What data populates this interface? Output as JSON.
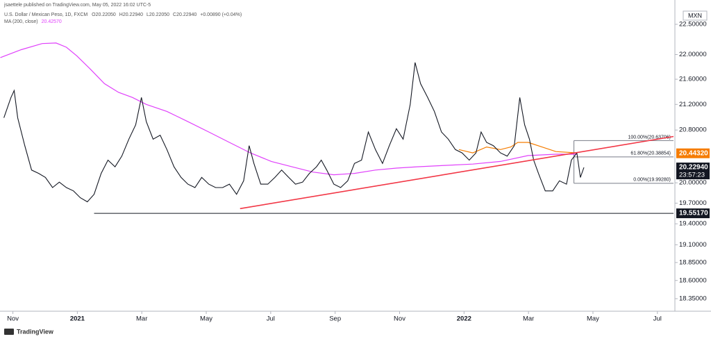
{
  "header": {
    "publisher": "jsaettele published on TradingView.com, May 05, 2022 16:02 UTC-5",
    "symbol": "U.S. Dollar / Mexican Peso, 1D, FXCM",
    "open": {
      "value": 20.2205,
      "label": "O20.22050"
    },
    "high": {
      "value": 20.2294,
      "label": "H20.22940"
    },
    "low": {
      "value": 20.2205,
      "label": "L20.22050"
    },
    "close": {
      "value": 20.2294,
      "label": "C20.22940"
    },
    "change": {
      "value": 0.0089,
      "label": "+0.00890 (+0.04%)"
    },
    "currency": "MXN",
    "footer": "TradingView"
  },
  "chart_data": {
    "type": "line",
    "log": true,
    "ylim": [
      18.18,
      22.91
    ],
    "yticks": [
      {
        "value": 22.5,
        "label": "22.50000"
      },
      {
        "value": 22,
        "label": "22.00000"
      },
      {
        "value": 21.6,
        "label": "21.60000"
      },
      {
        "value": 21.2,
        "label": "21.20000"
      },
      {
        "value": 20.8,
        "label": "20.80000"
      },
      {
        "value": 20,
        "label": "20.00000"
      },
      {
        "value": 19.7,
        "label": "19.70000"
      },
      {
        "value": 19.4,
        "label": "19.40000"
      },
      {
        "value": 19.1,
        "label": "19.10000"
      },
      {
        "value": 18.85,
        "label": "18.85000"
      },
      {
        "value": 18.6,
        "label": "18.60000"
      },
      {
        "value": 18.35,
        "label": "18.35000"
      }
    ],
    "xlim": [
      -0.4,
      20.5
    ],
    "xticks": [
      {
        "value": 0,
        "label": "Nov"
      },
      {
        "value": 2,
        "label": "2021"
      },
      {
        "value": 4,
        "label": "Mar"
      },
      {
        "value": 6,
        "label": "May"
      },
      {
        "value": 8,
        "label": "Jul"
      },
      {
        "value": 10,
        "label": "Sep"
      },
      {
        "value": 12,
        "label": "Nov"
      },
      {
        "value": 14,
        "label": "2022"
      },
      {
        "value": 16,
        "label": "Mar"
      },
      {
        "value": 18,
        "label": "May"
      },
      {
        "value": 20,
        "label": "Jul"
      }
    ],
    "price": {
      "color": "#131722",
      "x": [
        -0.28,
        -0.06,
        0.04,
        0.15,
        0.37,
        0.58,
        0.8,
        1.01,
        1.23,
        1.44,
        1.66,
        1.88,
        2.09,
        2.31,
        2.52,
        2.74,
        2.95,
        3.17,
        3.38,
        3.6,
        3.81,
        3.99,
        4.14,
        4.35,
        4.57,
        4.78,
        5.0,
        5.22,
        5.43,
        5.65,
        5.86,
        6.08,
        6.29,
        6.51,
        6.72,
        6.94,
        7.16,
        7.33,
        7.48,
        7.69,
        7.91,
        8.13,
        8.34,
        8.56,
        8.77,
        8.99,
        9.2,
        9.42,
        9.57,
        9.74,
        9.96,
        10.17,
        10.39,
        10.6,
        10.82,
        11.03,
        11.25,
        11.47,
        11.68,
        11.9,
        12.11,
        12.33,
        12.48,
        12.65,
        12.87,
        13.08,
        13.3,
        13.51,
        13.73,
        13.94,
        14.16,
        14.37,
        14.53,
        14.7,
        14.91,
        15.13,
        15.34,
        15.56,
        15.73,
        15.88,
        16.03,
        16.16,
        16.31,
        16.52,
        16.75,
        16.96,
        17.18,
        17.33,
        17.5,
        17.61,
        17.72
      ],
      "values": [
        20.99,
        21.31,
        21.42,
        20.99,
        20.56,
        20.19,
        20.14,
        20.08,
        19.93,
        20.01,
        19.93,
        19.88,
        19.78,
        19.72,
        19.83,
        20.14,
        20.34,
        20.24,
        20.4,
        20.66,
        20.88,
        21.31,
        20.93,
        20.66,
        20.72,
        20.5,
        20.24,
        20.08,
        19.98,
        19.93,
        20.08,
        19.98,
        19.93,
        19.93,
        19.98,
        19.83,
        20.03,
        20.56,
        20.29,
        19.98,
        19.98,
        20.08,
        20.19,
        20.08,
        19.98,
        20.01,
        20.14,
        20.24,
        20.34,
        20.19,
        19.98,
        19.93,
        20.03,
        20.29,
        20.34,
        20.77,
        20.5,
        20.29,
        20.56,
        20.82,
        20.66,
        21.2,
        21.87,
        21.53,
        21.31,
        21.09,
        20.77,
        20.66,
        20.5,
        20.45,
        20.34,
        20.45,
        20.77,
        20.61,
        20.56,
        20.45,
        20.4,
        20.56,
        21.31,
        20.88,
        20.66,
        20.34,
        20.14,
        19.88,
        19.88,
        20.03,
        19.98,
        20.34,
        20.45,
        20.08,
        20.23
      ]
    },
    "ma": {
      "name": "MA (200, close)",
      "last": {
        "value": 20.4257,
        "label": "20.42570"
      },
      "color": "#e040fb",
      "x": [
        -0.39,
        0.26,
        0.91,
        1.34,
        1.66,
        1.98,
        2.41,
        2.84,
        3.28,
        3.71,
        4.14,
        4.78,
        5.43,
        6.08,
        6.72,
        7.37,
        8.02,
        8.66,
        9.31,
        9.96,
        10.6,
        11.25,
        11.9,
        12.54,
        13.41,
        14.27,
        15.13,
        15.99,
        16.85,
        17.5
      ],
      "values": [
        21.95,
        22.08,
        22.18,
        22.19,
        22.12,
        21.98,
        21.76,
        21.53,
        21.39,
        21.31,
        21.2,
        21.09,
        20.93,
        20.77,
        20.61,
        20.45,
        20.32,
        20.24,
        20.16,
        20.12,
        20.14,
        20.19,
        20.22,
        20.24,
        20.26,
        20.28,
        20.32,
        20.41,
        20.43,
        20.43
      ]
    },
    "ma2": {
      "color": "#f57c00",
      "last": {
        "value": 20.4432,
        "label": "20.44320"
      },
      "x": [
        13.84,
        14.27,
        14.7,
        15.13,
        15.45,
        15.67,
        15.99,
        16.42,
        16.85,
        17.5
      ],
      "values": [
        20.5,
        20.45,
        20.54,
        20.5,
        20.54,
        20.61,
        20.61,
        20.54,
        20.47,
        20.45
      ]
    },
    "last_price": {
      "value": 20.2294,
      "label": "20.22940",
      "countdown": "23:57:23"
    },
    "trendline": {
      "color": "#f23645",
      "x": [
        7.05,
        20.5
      ],
      "values": [
        19.62,
        20.7
      ]
    },
    "support": {
      "value": 19.5517,
      "label": "19.55170",
      "x_start": 2.52
    },
    "fib": {
      "x_start": 17.41,
      "levels": [
        {
          "value": 20.63706,
          "label": "100.00%(20.63706)"
        },
        {
          "value": 20.38854,
          "label": "61.80%(20.38854)"
        },
        {
          "value": 19.9928,
          "label": "0.00%(19.99280)"
        }
      ]
    }
  }
}
